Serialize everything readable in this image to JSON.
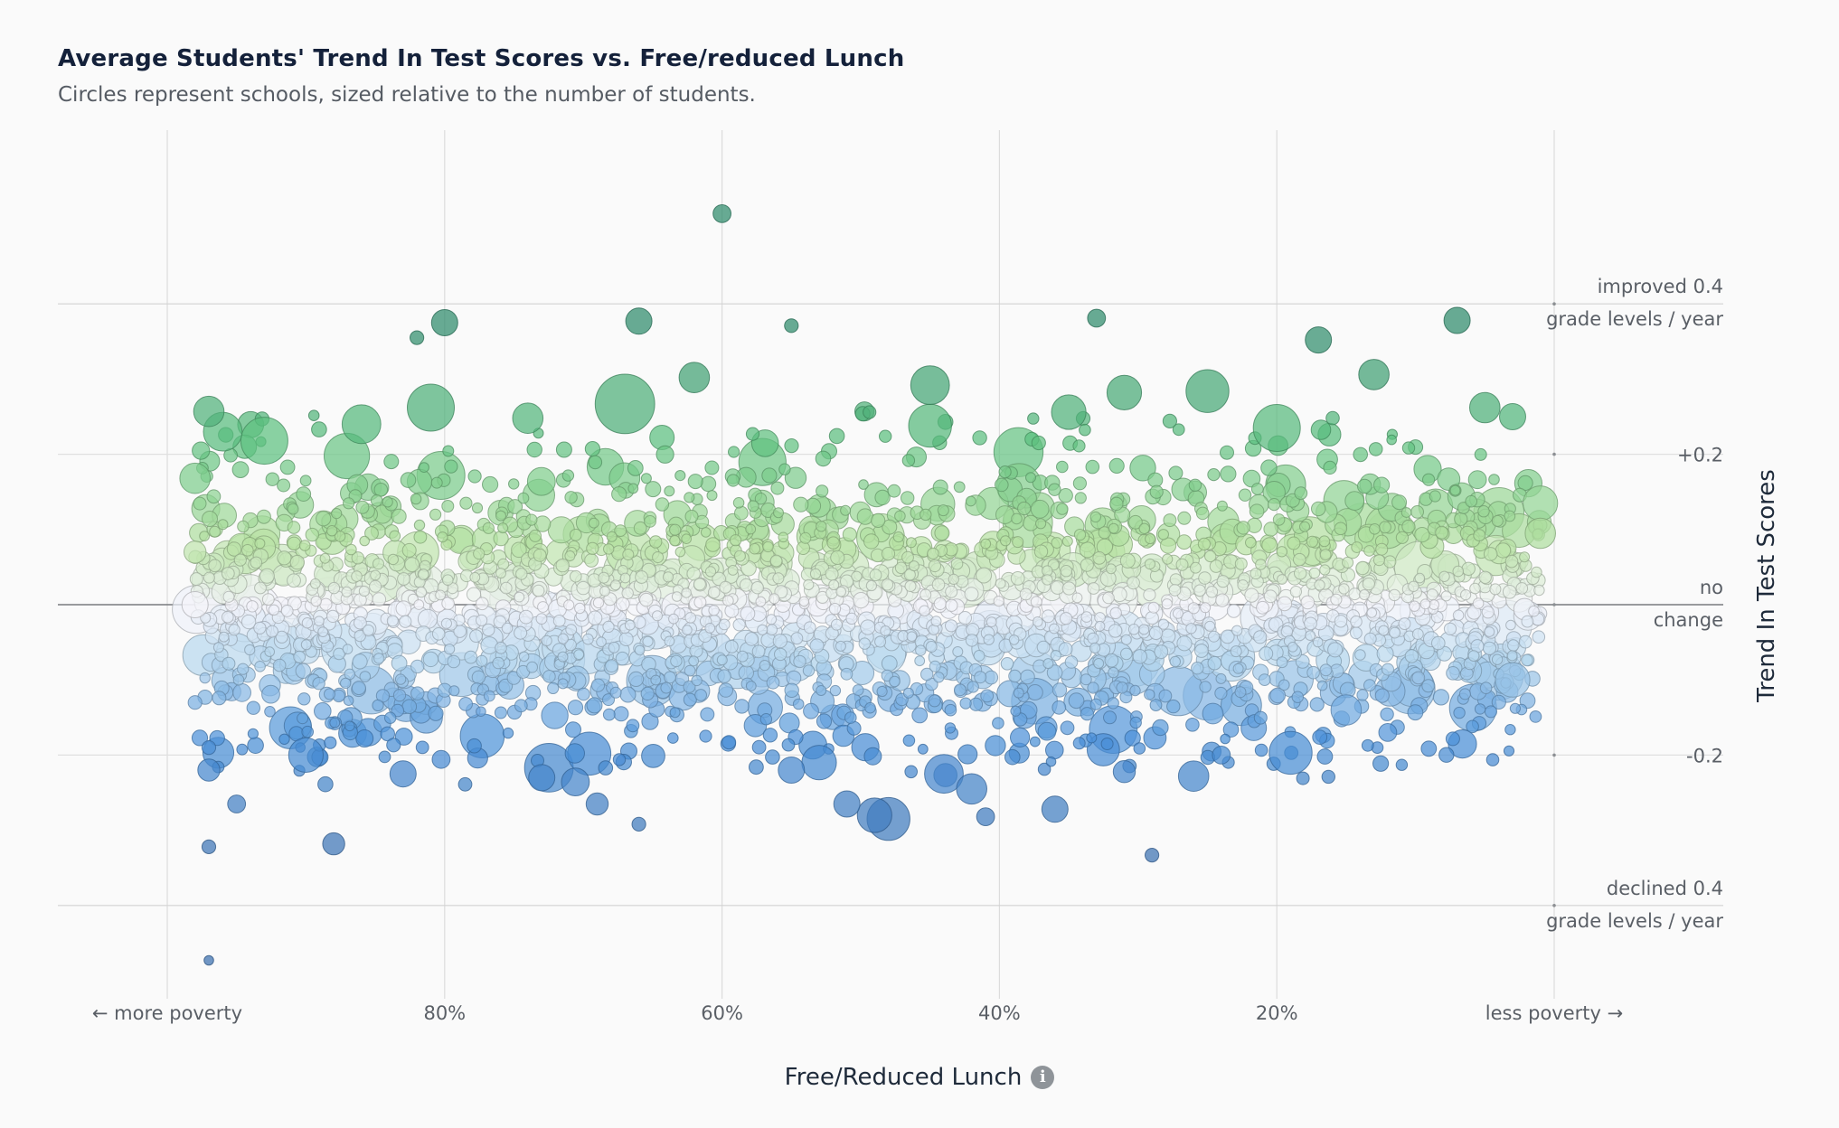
{
  "chart_data": {
    "type": "scatter",
    "title": "Average Students' Trend In Test Scores vs. Free/reduced Lunch",
    "subtitle": "Circles represent schools, sized relative to the number of students.",
    "xlabel": "Free/Reduced Lunch",
    "ylabel": "Trend In Test Scores",
    "x_reversed": true,
    "xlim": [
      100,
      0
    ],
    "ylim": [
      -0.52,
      0.52
    ],
    "x_ticks": [
      {
        "value": 100,
        "label": "← more poverty"
      },
      {
        "value": 80,
        "label": "80%"
      },
      {
        "value": 60,
        "label": "60%"
      },
      {
        "value": 40,
        "label": "40%"
      },
      {
        "value": 20,
        "label": "20%"
      },
      {
        "value": 0,
        "label": "less poverty →"
      }
    ],
    "y_ticks": [
      {
        "value": 0.4,
        "label": [
          "improved 0.4",
          "grade levels / year"
        ]
      },
      {
        "value": 0.2,
        "label": [
          "+0.2"
        ]
      },
      {
        "value": 0,
        "label": [
          "no",
          "change"
        ]
      },
      {
        "value": -0.2,
        "label": [
          "-0.2"
        ]
      },
      {
        "value": -0.4,
        "label": [
          "declined 0.4",
          "grade levels / year"
        ]
      }
    ],
    "grid": true,
    "color_scale": {
      "positive_strong": "#2e8b6b",
      "positive_mid": "#5cc07f",
      "positive_light": "#b8e2a4",
      "neutral": "#f4f4fa",
      "negative_light": "#b7d7ee",
      "negative_mid": "#4a90d8",
      "negative_strong": "#3a6fae"
    },
    "points": [
      {
        "x": 60,
        "y": 0.52,
        "size": 3
      },
      {
        "x": 80,
        "y": 0.375,
        "size": 5
      },
      {
        "x": 66,
        "y": 0.377,
        "size": 5
      },
      {
        "x": 33,
        "y": 0.381,
        "size": 3
      },
      {
        "x": 7,
        "y": 0.378,
        "size": 5
      },
      {
        "x": 17,
        "y": 0.352,
        "size": 5
      },
      {
        "x": 55,
        "y": 0.371,
        "size": 2
      },
      {
        "x": 82,
        "y": 0.355,
        "size": 2
      },
      {
        "x": 62,
        "y": 0.302,
        "size": 6
      },
      {
        "x": 13,
        "y": 0.306,
        "size": 6
      },
      {
        "x": 45,
        "y": 0.292,
        "size": 8
      },
      {
        "x": 25,
        "y": 0.284,
        "size": 9
      },
      {
        "x": 67,
        "y": 0.267,
        "size": 13
      },
      {
        "x": 81,
        "y": 0.262,
        "size": 10
      },
      {
        "x": 97,
        "y": 0.257,
        "size": 6
      },
      {
        "x": 45,
        "y": 0.238,
        "size": 9
      },
      {
        "x": 31,
        "y": 0.282,
        "size": 7
      },
      {
        "x": 20,
        "y": 0.235,
        "size": 10
      },
      {
        "x": 35,
        "y": 0.256,
        "size": 7
      },
      {
        "x": 93,
        "y": 0.218,
        "size": 10
      },
      {
        "x": 96,
        "y": 0.23,
        "size": 8
      },
      {
        "x": 86,
        "y": 0.24,
        "size": 8
      },
      {
        "x": 74,
        "y": 0.248,
        "size": 6
      },
      {
        "x": 5,
        "y": 0.262,
        "size": 6
      },
      {
        "x": 3,
        "y": 0.25,
        "size": 5
      },
      {
        "x": 98,
        "y": 0.168,
        "size": 6
      },
      {
        "x": 1,
        "y": 0.135,
        "size": 7
      },
      {
        "x": 98,
        "y": 0.07,
        "size": 4
      },
      {
        "x": 1,
        "y": 0.095,
        "size": 6
      },
      {
        "x": 98,
        "y": 0.0,
        "size": 5
      },
      {
        "x": 98,
        "y": -0.13,
        "size": 2
      },
      {
        "x": 97,
        "y": -0.19,
        "size": 2
      },
      {
        "x": 97,
        "y": -0.22,
        "size": 4
      },
      {
        "x": 95,
        "y": -0.265,
        "size": 3
      },
      {
        "x": 97,
        "y": -0.322,
        "size": 2
      },
      {
        "x": 88,
        "y": -0.318,
        "size": 4
      },
      {
        "x": 90,
        "y": -0.2,
        "size": 7
      },
      {
        "x": 83,
        "y": -0.225,
        "size": 5
      },
      {
        "x": 73,
        "y": -0.23,
        "size": 5
      },
      {
        "x": 69,
        "y": -0.265,
        "size": 4
      },
      {
        "x": 66,
        "y": -0.292,
        "size": 2
      },
      {
        "x": 55,
        "y": -0.22,
        "size": 5
      },
      {
        "x": 53,
        "y": -0.21,
        "size": 7
      },
      {
        "x": 51,
        "y": -0.265,
        "size": 5
      },
      {
        "x": 49,
        "y": -0.28,
        "size": 7
      },
      {
        "x": 48,
        "y": -0.285,
        "size": 9
      },
      {
        "x": 44,
        "y": -0.225,
        "size": 8
      },
      {
        "x": 42,
        "y": -0.245,
        "size": 6
      },
      {
        "x": 41,
        "y": -0.282,
        "size": 3
      },
      {
        "x": 36,
        "y": -0.272,
        "size": 5
      },
      {
        "x": 31,
        "y": -0.222,
        "size": 4
      },
      {
        "x": 29,
        "y": -0.333,
        "size": 2
      },
      {
        "x": 26,
        "y": -0.228,
        "size": 6
      },
      {
        "x": 24,
        "y": -0.2,
        "size": 3
      },
      {
        "x": 19,
        "y": -0.197,
        "size": 9
      },
      {
        "x": 12,
        "y": -0.17,
        "size": 3
      },
      {
        "x": 97,
        "y": -0.473,
        "size": 1
      },
      {
        "x": 15,
        "y": -0.14,
        "size": 6
      },
      {
        "x": 3,
        "y": -0.1,
        "size": 7
      }
    ]
  }
}
